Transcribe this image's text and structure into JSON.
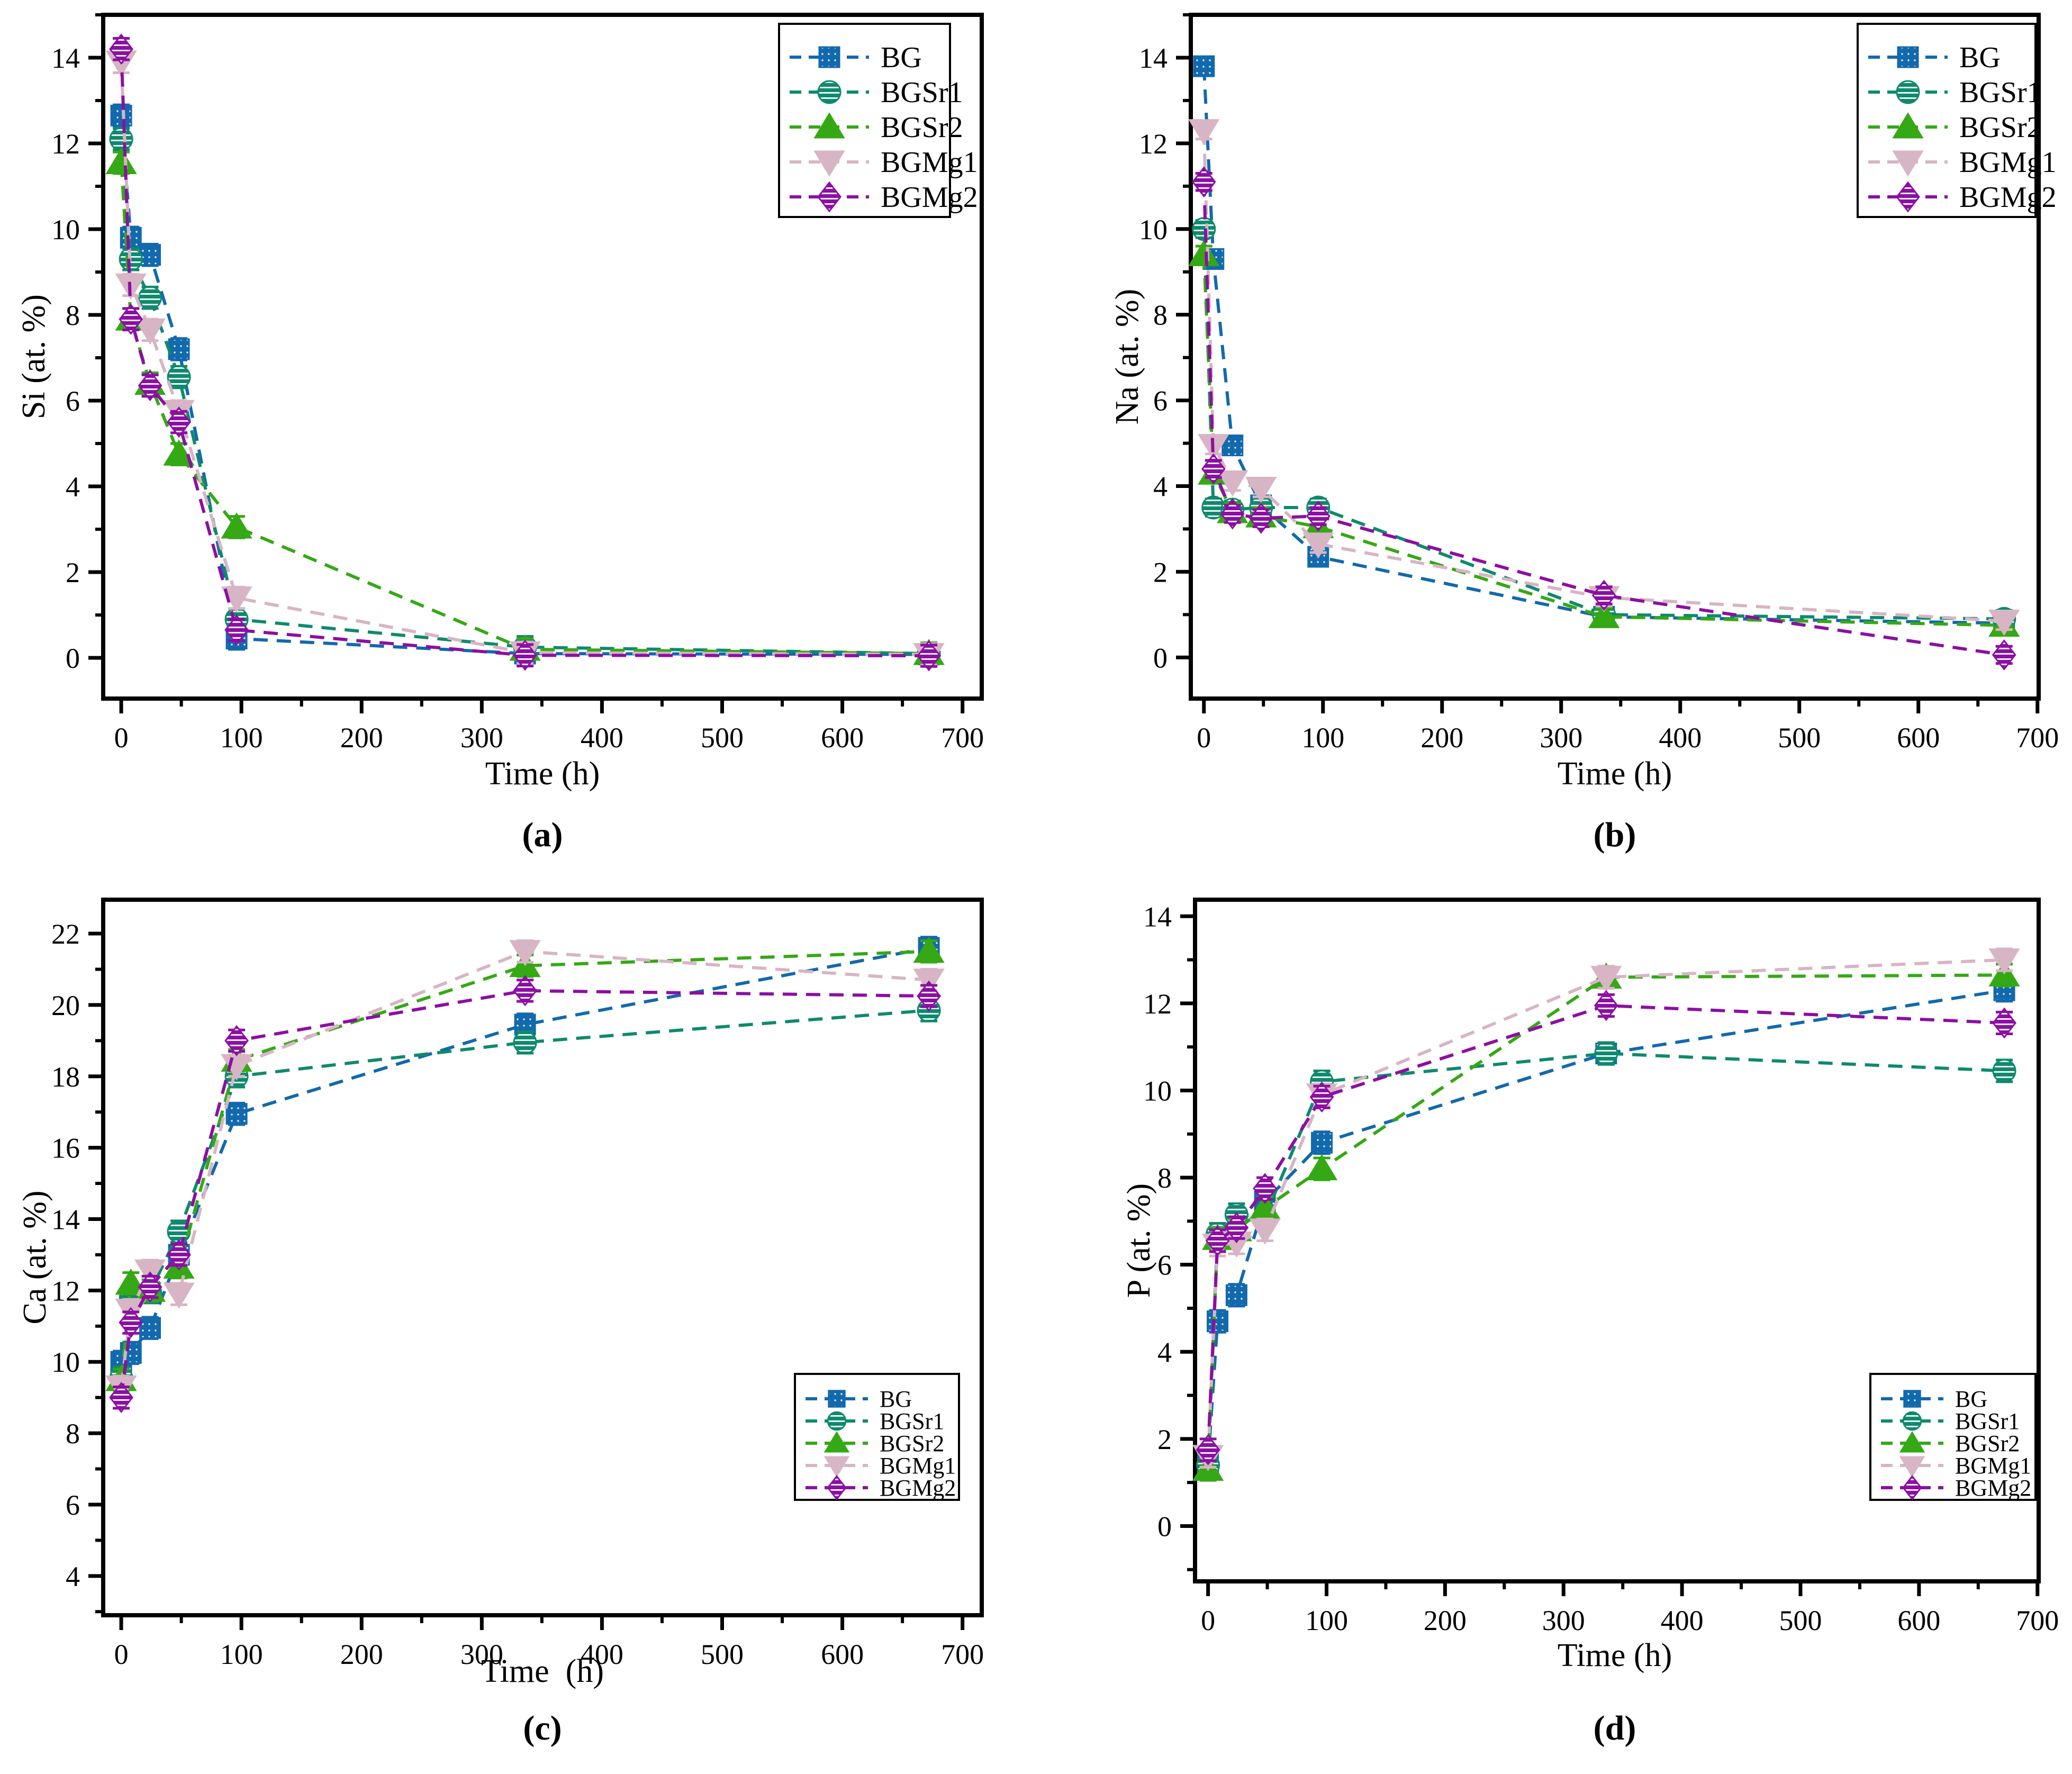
{
  "figure_background": "#ffffff",
  "series_styles": {
    "order": [
      "BG",
      "BGSr1",
      "BGSr2",
      "BGMg1",
      "BGMg2"
    ],
    "colors": {
      "BG": "#1269ad",
      "BGSr1": "#0e8a6d",
      "BGSr2": "#35a815",
      "BGMg1": "#d7b5c4",
      "BGMg2": "#8c0fa3"
    },
    "markers": {
      "BG": "square",
      "BGSr1": "circle",
      "BGSr2": "triangle-up",
      "BGMg1": "triangle-down",
      "BGMg2": "diamond"
    },
    "fill_patterns": {
      "BG": "dots",
      "BGSr1": "stripes",
      "BGSr2": "solid",
      "BGMg1": "solid",
      "BGMg2": "stripes"
    },
    "line_style": "dashed",
    "axis_color": "#000000"
  },
  "chart_data": [
    {
      "id": "a",
      "type": "line",
      "panel_label": "(a)",
      "xlabel": "Time (h)",
      "ylabel": "Si (at. %)",
      "x": [
        0,
        8,
        24,
        48,
        96,
        336,
        672
      ],
      "xlim": [
        -15,
        716
      ],
      "ylim": [
        -0.95,
        15.0
      ],
      "xticks": [
        0,
        100,
        200,
        300,
        400,
        500,
        600,
        700
      ],
      "yticks": [
        0,
        2,
        4,
        6,
        8,
        10,
        12,
        14
      ],
      "minor_x_step": 50,
      "minor_y_step": 1,
      "grid": false,
      "legend_position": "top-right",
      "error_bar": 0.25,
      "series": [
        {
          "name": "BG",
          "values": [
            12.65,
            9.8,
            9.4,
            7.2,
            0.45,
            0.1,
            0.08
          ]
        },
        {
          "name": "BGSr1",
          "values": [
            12.1,
            9.3,
            8.4,
            6.55,
            0.9,
            0.25,
            0.1
          ]
        },
        {
          "name": "BGSr2",
          "values": [
            11.55,
            7.9,
            6.4,
            4.75,
            3.05,
            0.2,
            0.1
          ]
        },
        {
          "name": "BGMg1",
          "values": [
            13.9,
            8.7,
            7.65,
            5.75,
            1.4,
            0.12,
            0.08
          ]
        },
        {
          "name": "BGMg2",
          "values": [
            14.2,
            7.9,
            6.35,
            5.5,
            0.65,
            0.06,
            0.05
          ]
        }
      ]
    },
    {
      "id": "b",
      "type": "line",
      "panel_label": "(b)",
      "xlabel": "Time (h)",
      "ylabel": "Na (at. %)",
      "x": [
        0,
        8,
        24,
        48,
        96,
        336,
        672
      ],
      "xlim": [
        -11,
        701
      ],
      "ylim": [
        -0.96,
        15.0
      ],
      "xticks": [
        0,
        100,
        200,
        300,
        400,
        500,
        600,
        700
      ],
      "yticks": [
        0,
        2,
        4,
        6,
        8,
        10,
        12,
        14
      ],
      "minor_x_step": 50,
      "minor_y_step": 1,
      "grid": false,
      "legend_position": "top-right",
      "error_bar": 0.2,
      "series": [
        {
          "name": "BG",
          "values": [
            13.8,
            9.3,
            4.95,
            3.55,
            2.35,
            0.95,
            0.8
          ]
        },
        {
          "name": "BGSr1",
          "values": [
            10.0,
            3.5,
            3.45,
            3.5,
            3.5,
            1.0,
            0.9
          ]
        },
        {
          "name": "BGSr2",
          "values": [
            9.4,
            4.3,
            3.4,
            3.3,
            3.05,
            0.95,
            0.75
          ]
        },
        {
          "name": "BGMg1",
          "values": [
            12.3,
            4.95,
            4.1,
            3.95,
            2.65,
            1.4,
            0.85
          ]
        },
        {
          "name": "BGMg2",
          "values": [
            11.1,
            4.4,
            3.35,
            3.25,
            3.3,
            1.45,
            0.06
          ]
        }
      ]
    },
    {
      "id": "c",
      "type": "line",
      "panel_label": "(c)",
      "xlabel": "Time  (h)",
      "ylabel": "Ca (at. %)",
      "x": [
        0,
        8,
        24,
        48,
        96,
        336,
        672
      ],
      "xlim": [
        -15,
        716
      ],
      "ylim": [
        2.9,
        22.95
      ],
      "xticks": [
        0,
        100,
        200,
        300,
        400,
        500,
        600,
        700
      ],
      "yticks": [
        4,
        6,
        8,
        10,
        12,
        14,
        16,
        18,
        20,
        22
      ],
      "minor_x_step": 50,
      "minor_y_step": 1,
      "grid": false,
      "legend_position": "bottom-right",
      "error_bar": 0.3,
      "series": [
        {
          "name": "BG",
          "values": [
            10.0,
            10.25,
            10.95,
            13.0,
            16.95,
            19.45,
            21.6
          ]
        },
        {
          "name": "BGSr1",
          "values": [
            9.55,
            11.8,
            11.95,
            13.65,
            18.0,
            18.95,
            19.85
          ]
        },
        {
          "name": "BGSr2",
          "values": [
            9.5,
            12.2,
            12.0,
            12.65,
            18.45,
            21.1,
            21.5
          ]
        },
        {
          "name": "BGMg1",
          "values": [
            9.3,
            11.45,
            12.55,
            11.9,
            18.3,
            21.5,
            20.7
          ]
        },
        {
          "name": "BGMg2",
          "values": [
            9.0,
            11.1,
            12.1,
            13.0,
            19.0,
            20.4,
            20.25
          ]
        }
      ]
    },
    {
      "id": "d",
      "type": "line",
      "panel_label": "(d)",
      "xlabel": "Time (h)",
      "ylabel": "P (at. %)",
      "x": [
        0,
        8,
        24,
        48,
        96,
        336,
        672
      ],
      "xlim": [
        -11,
        701
      ],
      "ylim": [
        -1.27,
        14.38
      ],
      "xticks": [
        0,
        100,
        200,
        300,
        400,
        500,
        600,
        700
      ],
      "yticks": [
        0,
        2,
        4,
        6,
        8,
        10,
        12,
        14
      ],
      "minor_x_step": 50,
      "minor_y_step": 1,
      "grid": false,
      "legend_position": "bottom-right",
      "error_bar": 0.25,
      "series": [
        {
          "name": "BG",
          "values": [
            1.45,
            4.7,
            5.3,
            7.45,
            8.8,
            10.85,
            12.3
          ]
        },
        {
          "name": "BGSr1",
          "values": [
            1.4,
            6.7,
            7.15,
            7.1,
            10.2,
            10.85,
            10.45
          ]
        },
        {
          "name": "BGSr2",
          "values": [
            1.3,
            6.6,
            6.8,
            7.3,
            8.2,
            12.6,
            12.65
          ]
        },
        {
          "name": "BGMg1",
          "values": [
            1.6,
            6.45,
            6.5,
            6.8,
            9.9,
            12.6,
            13.0
          ]
        },
        {
          "name": "BGMg2",
          "values": [
            1.75,
            6.55,
            6.85,
            7.75,
            9.85,
            11.95,
            11.55
          ]
        }
      ]
    }
  ]
}
